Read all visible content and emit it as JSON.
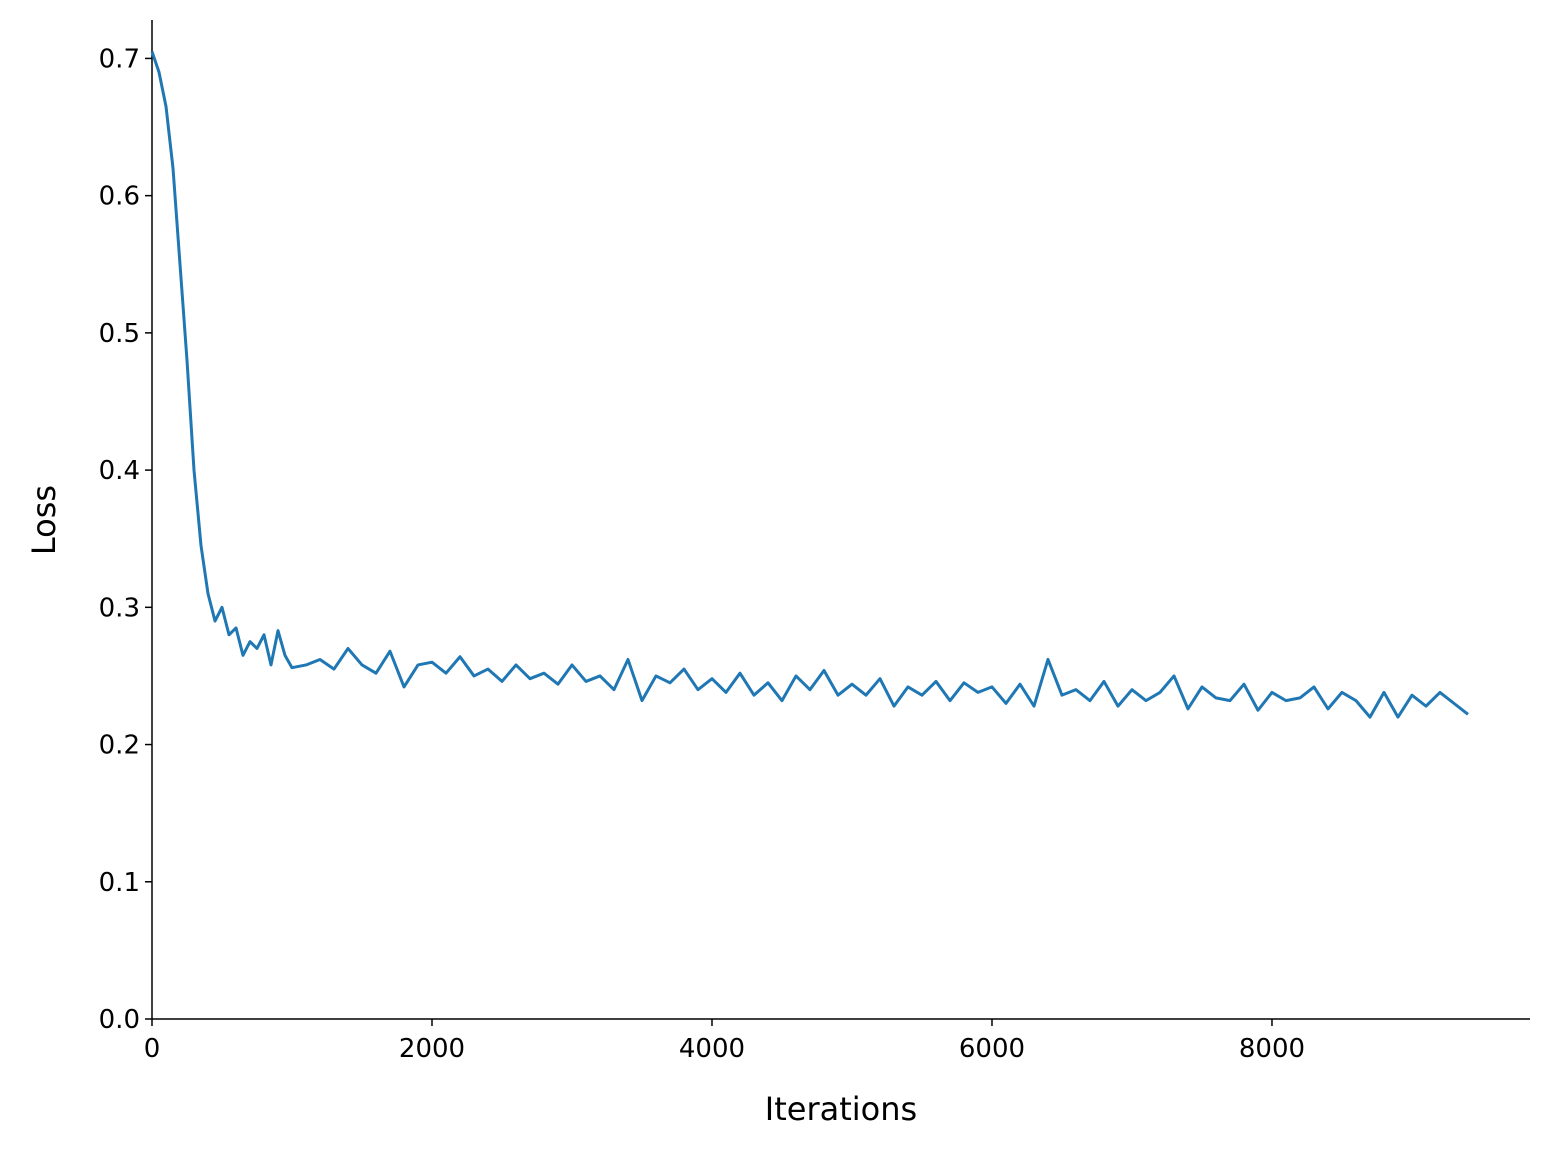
{
  "chart_data": {
    "type": "line",
    "x_label": "Iterations",
    "y_label": "Loss",
    "x": [
      0,
      50,
      100,
      150,
      200,
      250,
      300,
      350,
      400,
      450,
      500,
      550,
      600,
      650,
      700,
      750,
      800,
      850,
      900,
      950,
      1000,
      1100,
      1200,
      1300,
      1400,
      1500,
      1600,
      1700,
      1800,
      1900,
      2000,
      2100,
      2200,
      2300,
      2400,
      2500,
      2600,
      2700,
      2800,
      2900,
      3000,
      3100,
      3200,
      3300,
      3400,
      3500,
      3600,
      3700,
      3800,
      3900,
      4000,
      4100,
      4200,
      4300,
      4400,
      4500,
      4600,
      4700,
      4800,
      4900,
      5000,
      5100,
      5200,
      5300,
      5400,
      5500,
      5600,
      5700,
      5800,
      5900,
      6000,
      6100,
      6200,
      6300,
      6400,
      6500,
      6600,
      6700,
      6800,
      6900,
      7000,
      7100,
      7200,
      7300,
      7400,
      7500,
      7600,
      7700,
      7800,
      7900,
      8000,
      8100,
      8200,
      8300,
      8400,
      8500,
      8600,
      8700,
      8800,
      8900,
      9000,
      9100,
      9200,
      9300,
      9400
    ],
    "series": [
      {
        "color": "#1f77b4",
        "values": [
          0.705,
          0.69,
          0.665,
          0.62,
          0.55,
          0.48,
          0.4,
          0.345,
          0.31,
          0.29,
          0.3,
          0.28,
          0.285,
          0.265,
          0.275,
          0.27,
          0.28,
          0.258,
          0.283,
          0.265,
          0.256,
          0.258,
          0.262,
          0.255,
          0.27,
          0.258,
          0.252,
          0.268,
          0.242,
          0.258,
          0.26,
          0.252,
          0.264,
          0.25,
          0.255,
          0.246,
          0.258,
          0.248,
          0.252,
          0.244,
          0.258,
          0.246,
          0.25,
          0.24,
          0.262,
          0.232,
          0.25,
          0.245,
          0.255,
          0.24,
          0.248,
          0.238,
          0.252,
          0.236,
          0.245,
          0.232,
          0.25,
          0.24,
          0.254,
          0.236,
          0.244,
          0.236,
          0.248,
          0.228,
          0.242,
          0.236,
          0.246,
          0.232,
          0.245,
          0.238,
          0.242,
          0.23,
          0.244,
          0.228,
          0.262,
          0.236,
          0.24,
          0.232,
          0.246,
          0.228,
          0.24,
          0.232,
          0.238,
          0.25,
          0.226,
          0.242,
          0.234,
          0.232,
          0.244,
          0.225,
          0.238,
          0.232,
          0.234,
          0.242,
          0.226,
          0.238,
          0.232,
          0.22,
          0.238,
          0.22,
          0.236,
          0.228,
          0.238,
          0.23,
          0.222
        ]
      }
    ],
    "xlim": [
      0,
      9843
    ],
    "ylim": [
      0,
      0.728
    ],
    "xticks": [
      0,
      2000,
      4000,
      6000,
      8000
    ],
    "yticks": [
      {
        "value": 0,
        "label": "0.0"
      },
      0.1,
      0.2,
      0.3,
      0.4,
      0.5,
      0.6,
      0.7
    ],
    "grid": false
  }
}
